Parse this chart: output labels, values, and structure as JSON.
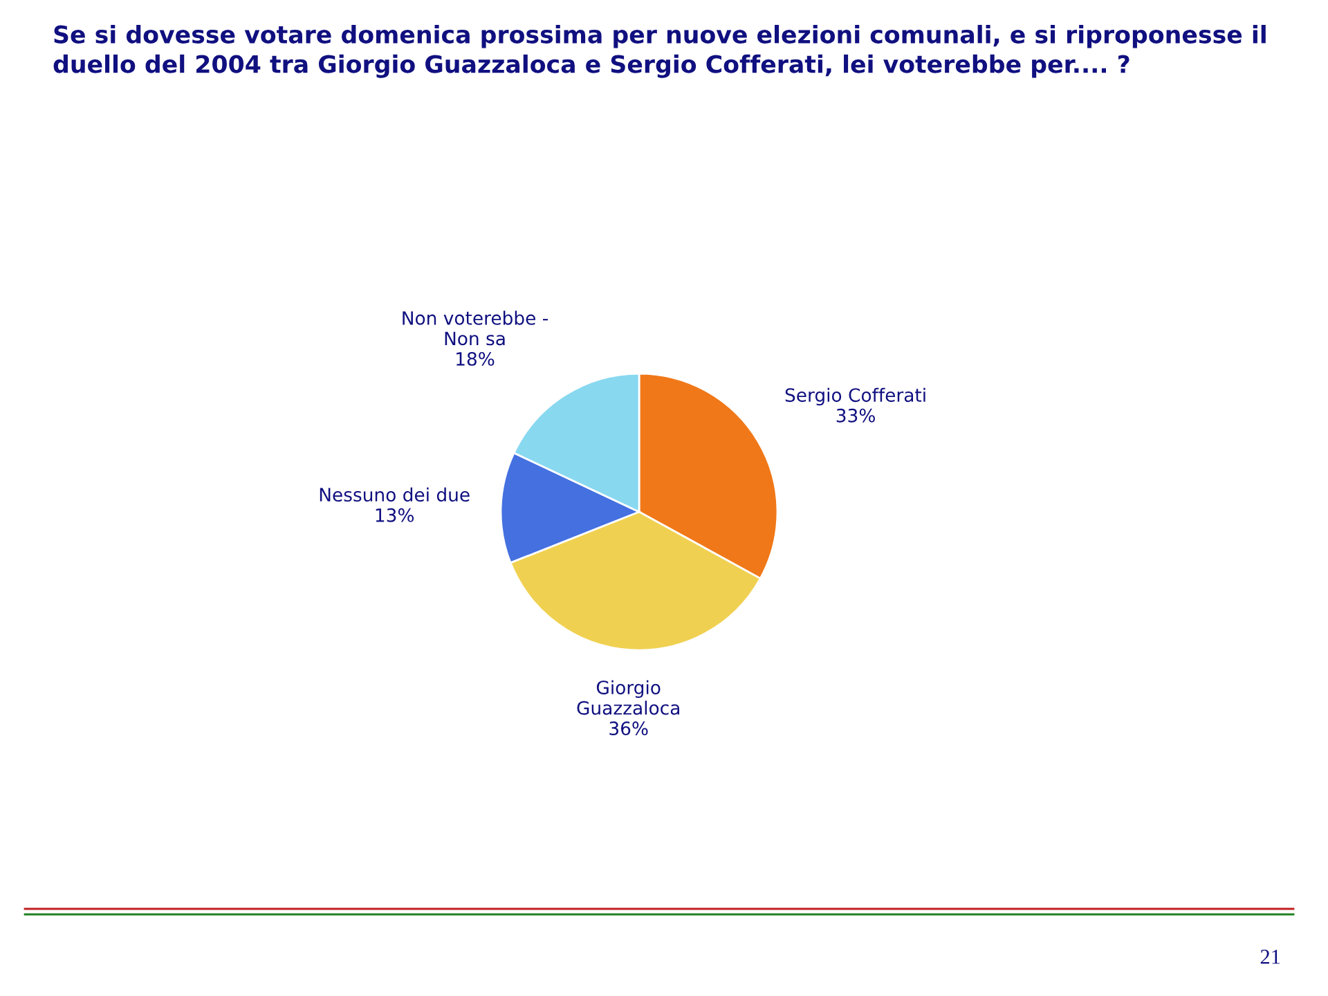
{
  "chart_data": {
    "type": "pie",
    "title": "Se si dovesse votare domenica prossima per nuove elezioni comunali, e si riproponesse il duello del 2004 tra Giorgio Guazzaloca e Sergio Cofferati, lei voterebbe per.... ?",
    "categories": [
      "Sergio Cofferati",
      "Giorgio\nGuazzaloca",
      "Nessuno dei due",
      "Non voterebbe -\nNon sa"
    ],
    "values": [
      33,
      36,
      13,
      18
    ],
    "colors": [
      "#f07818",
      "#f0d050",
      "#4470e0",
      "#88d8f0"
    ],
    "value_labels": [
      "33%",
      "36%",
      "13%",
      "18%"
    ],
    "annotations": [
      "21"
    ]
  }
}
